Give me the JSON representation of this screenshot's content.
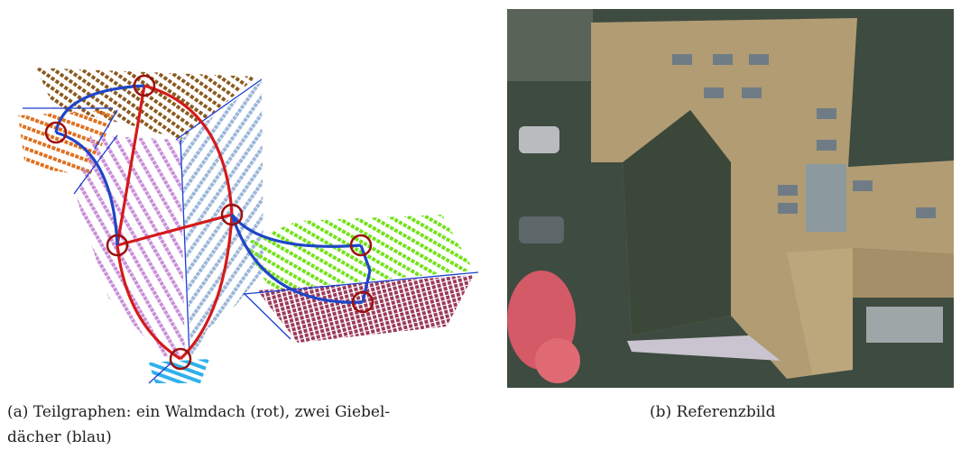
{
  "figure": {
    "subfigures": [
      {
        "caption_lines": [
          "(a) Teilgraphen: ein Walmdach (rot), zwei Giebel-",
          "dächer (blau)"
        ]
      },
      {
        "caption_lines": [
          "(b) Referenzbild"
        ]
      }
    ]
  }
}
